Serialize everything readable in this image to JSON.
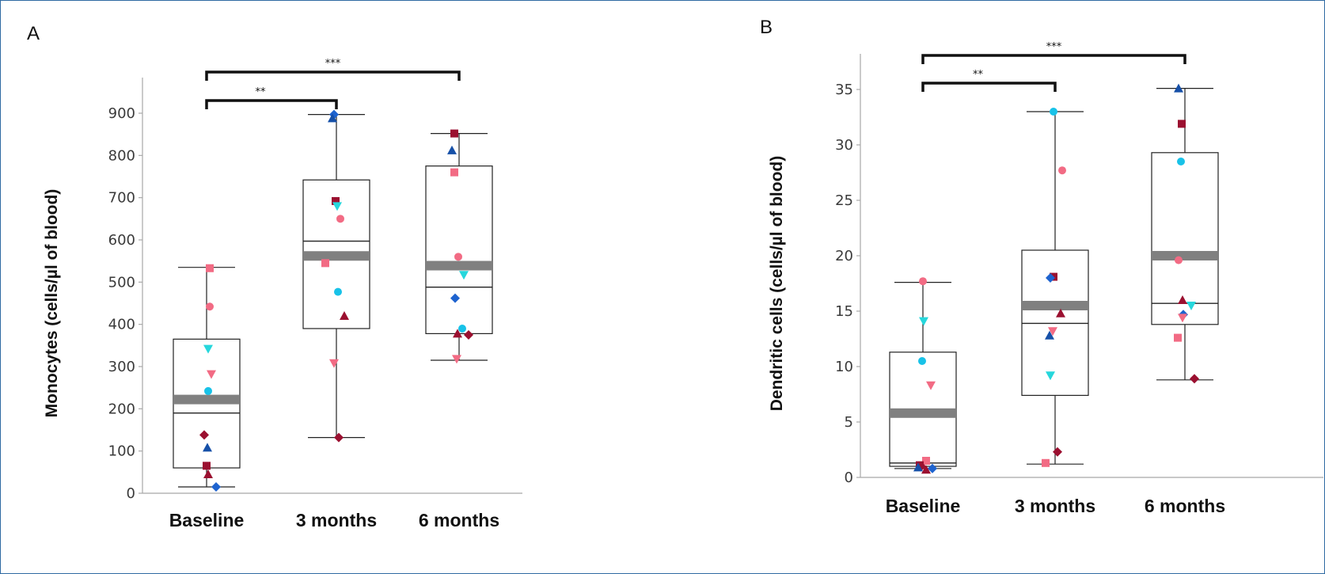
{
  "colors": {
    "frame": "#2f6aa3",
    "mean_bar": "#808080",
    "crimson": "#9b1030",
    "pink": "#f26b84",
    "navy": "#1650a8",
    "cyan": "#18c2e8",
    "aqua": "#26d7dc",
    "blue": "#1e63cf"
  },
  "chart_data": [
    {
      "type": "box",
      "panel": "A",
      "ylabel": "Monocytes (cells/µl of blood)",
      "categories": [
        "Baseline",
        "3 months",
        "6 months"
      ],
      "ylim": [
        0,
        900
      ],
      "yticks": [
        0,
        100,
        200,
        300,
        400,
        500,
        600,
        700,
        800,
        900
      ],
      "grid": false,
      "boxes": [
        {
          "min": 15,
          "q1": 60,
          "median": 190,
          "q3": 365,
          "max": 535,
          "mean": 222
        },
        {
          "min": 132,
          "q1": 390,
          "median": 597,
          "q3": 742,
          "max": 897,
          "mean": 562
        },
        {
          "min": 315,
          "q1": 378,
          "median": 488,
          "q3": 775,
          "max": 852,
          "mean": 539
        }
      ],
      "points": [
        [
          {
            "y": 533,
            "shape": "square",
            "color": "pink"
          },
          {
            "y": 442,
            "shape": "circle",
            "color": "pink"
          },
          {
            "y": 342,
            "shape": "tri-down",
            "color": "aqua"
          },
          {
            "y": 282,
            "shape": "tri-down",
            "color": "pink"
          },
          {
            "y": 242,
            "shape": "circle",
            "color": "cyan"
          },
          {
            "y": 138,
            "shape": "diamond",
            "color": "crimson"
          },
          {
            "y": 108,
            "shape": "tri-up",
            "color": "navy"
          },
          {
            "y": 65,
            "shape": "square",
            "color": "crimson"
          },
          {
            "y": 45,
            "shape": "tri-up",
            "color": "crimson"
          },
          {
            "y": 15,
            "shape": "diamond",
            "color": "blue"
          }
        ],
        [
          {
            "y": 897,
            "shape": "diamond",
            "color": "blue"
          },
          {
            "y": 888,
            "shape": "tri-up",
            "color": "navy"
          },
          {
            "y": 692,
            "shape": "square",
            "color": "crimson"
          },
          {
            "y": 680,
            "shape": "tri-down",
            "color": "aqua"
          },
          {
            "y": 650,
            "shape": "circle",
            "color": "pink"
          },
          {
            "y": 545,
            "shape": "square",
            "color": "pink"
          },
          {
            "y": 477,
            "shape": "circle",
            "color": "cyan"
          },
          {
            "y": 420,
            "shape": "tri-up",
            "color": "crimson"
          },
          {
            "y": 308,
            "shape": "tri-down",
            "color": "pink"
          },
          {
            "y": 132,
            "shape": "diamond",
            "color": "crimson"
          }
        ],
        [
          {
            "y": 852,
            "shape": "square",
            "color": "crimson"
          },
          {
            "y": 812,
            "shape": "tri-up",
            "color": "navy"
          },
          {
            "y": 760,
            "shape": "square",
            "color": "pink"
          },
          {
            "y": 560,
            "shape": "circle",
            "color": "pink"
          },
          {
            "y": 517,
            "shape": "tri-down",
            "color": "aqua"
          },
          {
            "y": 462,
            "shape": "diamond",
            "color": "blue"
          },
          {
            "y": 390,
            "shape": "circle",
            "color": "cyan"
          },
          {
            "y": 378,
            "shape": "tri-up",
            "color": "crimson"
          },
          {
            "y": 375,
            "shape": "diamond",
            "color": "crimson"
          },
          {
            "y": 318,
            "shape": "tri-down",
            "color": "pink"
          }
        ]
      ],
      "brackets": [
        {
          "from": 0,
          "to": 1,
          "label": "**"
        },
        {
          "from": 0,
          "to": 2,
          "label": "***"
        }
      ]
    },
    {
      "type": "box",
      "panel": "B",
      "ylabel": "Dendritic cells (cells/µl of blood)",
      "categories": [
        "Baseline",
        "3 months",
        "6 months"
      ],
      "ylim": [
        0,
        35
      ],
      "yticks": [
        0,
        5,
        10,
        15,
        20,
        25,
        30,
        35
      ],
      "grid": false,
      "boxes": [
        {
          "min": 0.8,
          "q1": 1.0,
          "median": 1.3,
          "q3": 11.3,
          "max": 17.6,
          "mean": 5.8
        },
        {
          "min": 1.2,
          "q1": 7.4,
          "median": 13.9,
          "q3": 20.5,
          "max": 33.0,
          "mean": 15.5
        },
        {
          "min": 8.8,
          "q1": 13.8,
          "median": 15.7,
          "q3": 29.3,
          "max": 35.1,
          "mean": 20.0
        }
      ],
      "points": [
        [
          {
            "y": 17.7,
            "shape": "circle",
            "color": "pink"
          },
          {
            "y": 14.1,
            "shape": "tri-down",
            "color": "aqua"
          },
          {
            "y": 10.5,
            "shape": "circle",
            "color": "cyan"
          },
          {
            "y": 8.3,
            "shape": "tri-down",
            "color": "pink"
          },
          {
            "y": 1.5,
            "shape": "square",
            "color": "pink"
          },
          {
            "y": 1.1,
            "shape": "square",
            "color": "crimson"
          },
          {
            "y": 1.0,
            "shape": "diamond",
            "color": "crimson"
          },
          {
            "y": 0.9,
            "shape": "tri-up",
            "color": "navy"
          },
          {
            "y": 0.8,
            "shape": "diamond",
            "color": "blue"
          },
          {
            "y": 0.7,
            "shape": "tri-up",
            "color": "crimson"
          }
        ],
        [
          {
            "y": 33.0,
            "shape": "circle",
            "color": "cyan"
          },
          {
            "y": 27.7,
            "shape": "circle",
            "color": "pink"
          },
          {
            "y": 18.1,
            "shape": "square",
            "color": "crimson"
          },
          {
            "y": 18.0,
            "shape": "diamond",
            "color": "blue"
          },
          {
            "y": 14.8,
            "shape": "tri-up",
            "color": "crimson"
          },
          {
            "y": 13.2,
            "shape": "tri-down",
            "color": "pink"
          },
          {
            "y": 12.8,
            "shape": "tri-up",
            "color": "navy"
          },
          {
            "y": 9.2,
            "shape": "tri-down",
            "color": "aqua"
          },
          {
            "y": 2.3,
            "shape": "diamond",
            "color": "crimson"
          },
          {
            "y": 1.3,
            "shape": "square",
            "color": "pink"
          }
        ],
        [
          {
            "y": 35.1,
            "shape": "tri-up",
            "color": "navy"
          },
          {
            "y": 31.9,
            "shape": "square",
            "color": "crimson"
          },
          {
            "y": 28.5,
            "shape": "circle",
            "color": "cyan"
          },
          {
            "y": 19.6,
            "shape": "circle",
            "color": "pink"
          },
          {
            "y": 16.0,
            "shape": "tri-up",
            "color": "crimson"
          },
          {
            "y": 15.5,
            "shape": "tri-down",
            "color": "aqua"
          },
          {
            "y": 14.7,
            "shape": "diamond",
            "color": "blue"
          },
          {
            "y": 14.4,
            "shape": "tri-down",
            "color": "pink"
          },
          {
            "y": 12.6,
            "shape": "square",
            "color": "pink"
          },
          {
            "y": 8.9,
            "shape": "diamond",
            "color": "crimson"
          }
        ]
      ],
      "brackets": [
        {
          "from": 0,
          "to": 1,
          "label": "**"
        },
        {
          "from": 0,
          "to": 2,
          "label": "***"
        }
      ]
    }
  ]
}
